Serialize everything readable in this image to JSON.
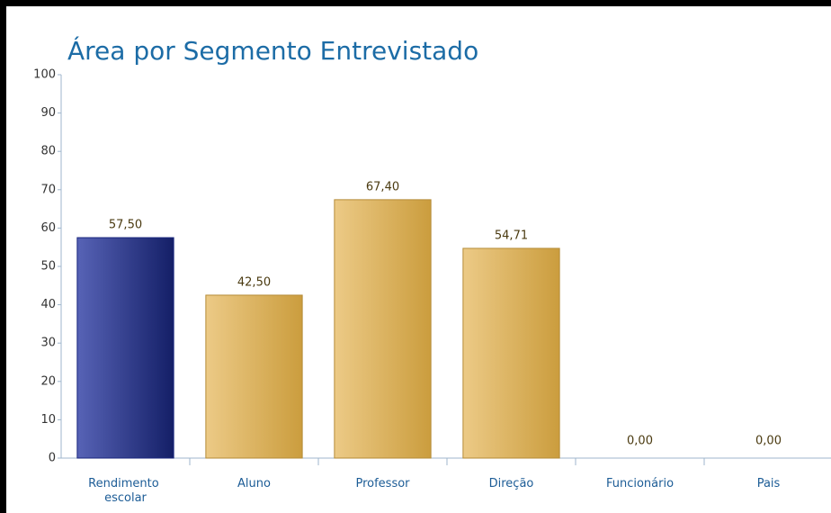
{
  "chart_data": {
    "type": "bar",
    "title": "Área por Segmento Entrevistado",
    "categories": [
      "Rendimento escolar",
      "Aluno",
      "Professor",
      "Direção",
      "Funcionário",
      "Pais"
    ],
    "values": [
      57.5,
      42.5,
      67.4,
      54.71,
      0,
      0
    ],
    "value_labels": [
      "57,50",
      "42,50",
      "67,40",
      "54,71",
      "0,00",
      "0,00"
    ],
    "colors": [
      "#1f2f9e",
      "#e2ae45",
      "#e2ae45",
      "#e2ae45",
      "#e2ae45",
      "#e2ae45"
    ],
    "ylim": [
      0,
      100
    ],
    "yticks": [
      0,
      10,
      20,
      30,
      40,
      50,
      60,
      70,
      80,
      90,
      100
    ]
  }
}
